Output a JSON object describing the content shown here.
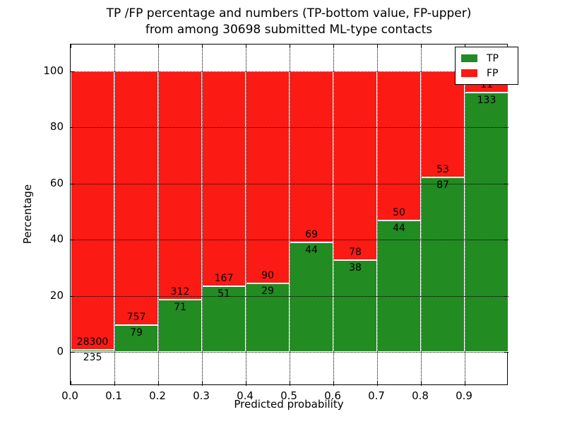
{
  "figure": {
    "title_line1": "TP /FP percentage and numbers (TP-bottom value, FP-upper)",
    "title_line2": "from among 30698 submitted ML-type contacts",
    "xlabel": "Predicted probability",
    "ylabel": "Percentage"
  },
  "chart_data": {
    "type": "bar",
    "stacked": true,
    "title": "TP /FP percentage and numbers (TP-bottom value, FP-upper) from among 30698 submitted ML-type contacts",
    "xlabel": "Predicted probability",
    "ylabel": "Percentage",
    "total_submitted_contacts": 30698,
    "xlim": [
      0.0,
      1.0
    ],
    "ylim": [
      -12.1,
      109.6
    ],
    "x_tick_labels": [
      "0.0",
      "0.1",
      "0.2",
      "0.3",
      "0.4",
      "0.5",
      "0.6",
      "0.7",
      "0.8",
      "0.9"
    ],
    "y_tick_values": [
      0,
      20,
      40,
      60,
      80,
      100
    ],
    "grid": true,
    "grid_style": "dotted",
    "legend_position": "upper right",
    "bin_width": 0.1,
    "bin_starts": [
      0.0,
      0.1,
      0.2,
      0.3,
      0.4,
      0.5,
      0.6,
      0.7,
      0.8,
      0.9
    ],
    "bars_normalized_to_percent": true,
    "series": [
      {
        "name": "TP",
        "color": "#228b22",
        "counts": [
          235,
          79,
          71,
          51,
          29,
          44,
          38,
          44,
          87,
          133
        ]
      },
      {
        "name": "FP",
        "color": "#fc1a15",
        "counts": [
          28300,
          757,
          312,
          167,
          90,
          69,
          78,
          50,
          53,
          11
        ]
      }
    ],
    "tp_percent": [
      0.82,
      9.45,
      18.54,
      23.39,
      24.37,
      38.94,
      32.76,
      46.81,
      62.14,
      92.36
    ]
  }
}
